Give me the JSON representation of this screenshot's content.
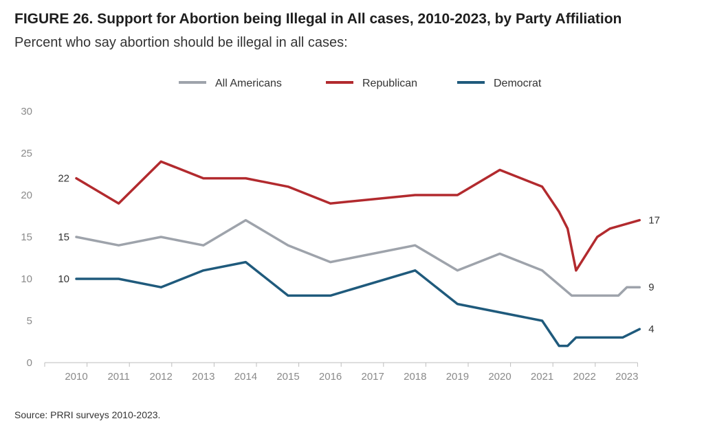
{
  "header": {
    "title": "FIGURE 26.  Support for Abortion being Illegal in All cases, 2010-2023, by Party Affiliation",
    "subtitle": "Percent who say abortion should be illegal in all cases:"
  },
  "footer": {
    "source": "Source: PRRI surveys 2010-2023."
  },
  "chart_data": {
    "type": "line",
    "title": "FIGURE 26.  Support for Abortion being Illegal in All cases, 2010-2023, by Party Affiliation",
    "subtitle": "Percent who say abortion should be illegal in all cases:",
    "xlabel": "",
    "ylabel": "",
    "ylim": [
      0,
      30
    ],
    "yticks": [
      "0",
      "5",
      "10",
      "15",
      "20",
      "25",
      "30"
    ],
    "xticks": [
      "2010",
      "2011",
      "2012",
      "2013",
      "2014",
      "2015",
      "2016",
      "2017",
      "2018",
      "2019",
      "2020",
      "2021",
      "2022",
      "2023"
    ],
    "grid": false,
    "legend_position": "top-center",
    "series": [
      {
        "name": "All Americans",
        "color": "#9ea3ab",
        "x": [
          2010,
          2011,
          2012,
          2013,
          2014,
          2015,
          2016,
          2018,
          2019,
          2020,
          2021,
          2021.7,
          2022,
          2022.5,
          2022.8,
          2023,
          2023.3
        ],
        "values": [
          15,
          14,
          15,
          14,
          17,
          14,
          12,
          14,
          11,
          13,
          11,
          8,
          8,
          8,
          8,
          9,
          9
        ],
        "labels": [
          {
            "index": 0,
            "text": "15",
            "side": "left"
          },
          {
            "index": 16,
            "text": "9",
            "side": "right"
          }
        ]
      },
      {
        "name": "Republican",
        "color": "#b22a2e",
        "x": [
          2010,
          2011,
          2012,
          2013,
          2014,
          2015,
          2016,
          2018,
          2019,
          2020,
          2021,
          2021.4,
          2021.6,
          2021.8,
          2022.3,
          2022.6,
          2023.3
        ],
        "values": [
          22,
          19,
          24,
          22,
          22,
          21,
          19,
          20,
          20,
          23,
          21,
          18,
          16,
          11,
          15,
          16,
          17
        ],
        "labels": [
          {
            "index": 0,
            "text": "22",
            "side": "left"
          },
          {
            "index": 16,
            "text": "17",
            "side": "right"
          }
        ]
      },
      {
        "name": "Democrat",
        "color": "#1f5a7c",
        "x": [
          2010,
          2011,
          2012,
          2013,
          2014,
          2015,
          2016,
          2018,
          2019,
          2021,
          2021.4,
          2021.6,
          2021.8,
          2022,
          2022.6,
          2022.9,
          2023.3
        ],
        "values": [
          10,
          10,
          9,
          11,
          12,
          8,
          8,
          11,
          7,
          5,
          2,
          2,
          3,
          3,
          3,
          3,
          4
        ],
        "labels": [
          {
            "index": 0,
            "text": "10",
            "side": "left"
          },
          {
            "index": 16,
            "text": "4",
            "side": "right"
          }
        ]
      }
    ]
  }
}
